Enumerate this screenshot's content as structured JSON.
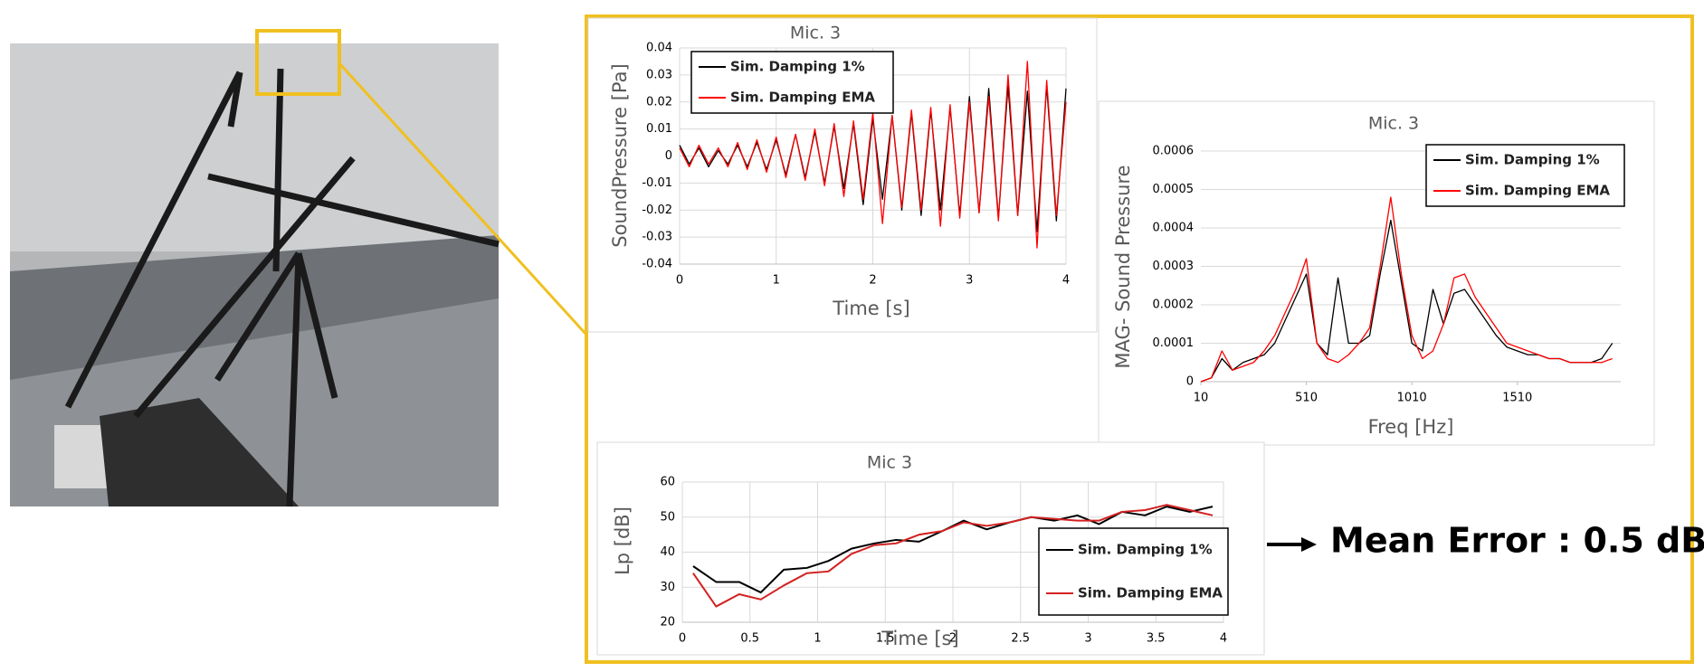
{
  "chart_data": [
    {
      "type": "line",
      "title": "Mic. 3",
      "x_label": "Time [s]",
      "y_label": "SoundPressure [Pa]",
      "x": [
        0,
        0.1,
        0.2,
        0.3,
        0.4,
        0.5,
        0.6,
        0.7,
        0.8,
        0.9,
        1,
        1.1,
        1.2,
        1.3,
        1.4,
        1.5,
        1.6,
        1.7,
        1.8,
        1.9,
        2,
        2.1,
        2.2,
        2.3,
        2.4,
        2.5,
        2.6,
        2.7,
        2.8,
        2.9,
        3,
        3.1,
        3.2,
        3.3,
        3.4,
        3.5,
        3.6,
        3.7,
        3.8,
        3.9,
        4
      ],
      "series": [
        {
          "name": "Sim. Damping 1%",
          "color": "#000000",
          "values": [
            0.004,
            -0.003,
            0.003,
            -0.004,
            0.002,
            -0.003,
            0.004,
            -0.004,
            0.005,
            -0.005,
            0.006,
            -0.007,
            0.008,
            -0.008,
            0.009,
            -0.01,
            0.011,
            -0.012,
            0.012,
            -0.018,
            0.014,
            -0.016,
            0.015,
            -0.02,
            0.016,
            -0.022,
            0.017,
            -0.02,
            0.018,
            -0.022,
            0.022,
            -0.021,
            0.025,
            -0.023,
            0.026,
            -0.022,
            0.024,
            -0.028,
            0.026,
            -0.024,
            0.025
          ]
        },
        {
          "name": "Sim. Damping EMA",
          "color": "#ff0000",
          "values": [
            0.003,
            -0.004,
            0.004,
            -0.003,
            0.003,
            -0.004,
            0.005,
            -0.005,
            0.006,
            -0.006,
            0.007,
            -0.008,
            0.008,
            -0.009,
            0.01,
            -0.011,
            0.012,
            -0.015,
            0.013,
            -0.016,
            0.016,
            -0.025,
            0.015,
            -0.019,
            0.017,
            -0.02,
            0.018,
            -0.026,
            0.019,
            -0.023,
            0.02,
            -0.021,
            0.022,
            -0.024,
            0.03,
            -0.022,
            0.035,
            -0.034,
            0.028,
            -0.022,
            0.02
          ]
        }
      ],
      "xlim": [
        0,
        4
      ],
      "xticks": [
        0,
        1,
        2,
        3,
        4
      ],
      "ylim": [
        -0.04,
        0.04
      ],
      "yticks": [
        -0.04,
        -0.03,
        -0.02,
        -0.01,
        0,
        0.01,
        0.02,
        0.03,
        0.04
      ],
      "grid": true,
      "legend": "upper left"
    },
    {
      "type": "line",
      "title": "Mic. 3",
      "x_label": "Freq [Hz]",
      "y_label": "MAG- Sound Pressure",
      "x": [
        10,
        60,
        110,
        160,
        210,
        260,
        310,
        360,
        410,
        460,
        510,
        560,
        610,
        660,
        710,
        760,
        810,
        860,
        910,
        960,
        1010,
        1060,
        1110,
        1160,
        1210,
        1260,
        1310,
        1360,
        1410,
        1460,
        1510,
        1560,
        1610,
        1660,
        1710,
        1760,
        1810,
        1860,
        1910,
        1960
      ],
      "series": [
        {
          "name": "Sim. Damping 1%",
          "color": "#000000",
          "values": [
            0,
            1e-05,
            6e-05,
            3e-05,
            5e-05,
            6e-05,
            7e-05,
            0.0001,
            0.00016,
            0.00022,
            0.00028,
            0.0001,
            7e-05,
            0.00027,
            0.0001,
            0.0001,
            0.00012,
            0.00028,
            0.00042,
            0.00026,
            0.0001,
            8e-05,
            0.00024,
            0.00015,
            0.00023,
            0.00024,
            0.0002,
            0.00016,
            0.00012,
            9e-05,
            8e-05,
            7e-05,
            7e-05,
            6e-05,
            6e-05,
            5e-05,
            5e-05,
            5e-05,
            6e-05,
            0.0001
          ]
        },
        {
          "name": "Sim. Damping EMA",
          "color": "#ff0000",
          "values": [
            0,
            1e-05,
            8e-05,
            3e-05,
            4e-05,
            5e-05,
            8e-05,
            0.00012,
            0.00018,
            0.00024,
            0.00032,
            0.0001,
            6e-05,
            5e-05,
            7e-05,
            0.0001,
            0.00014,
            0.0003,
            0.00048,
            0.00028,
            0.00012,
            6e-05,
            8e-05,
            0.00015,
            0.00027,
            0.00028,
            0.00022,
            0.00018,
            0.00014,
            0.0001,
            9e-05,
            8e-05,
            7e-05,
            6e-05,
            6e-05,
            5e-05,
            5e-05,
            5e-05,
            5e-05,
            6e-05
          ]
        }
      ],
      "xlim": [
        10,
        2000
      ],
      "xticks": [
        10,
        510,
        1010,
        1510
      ],
      "ylim": [
        0,
        0.0006
      ],
      "yticks": [
        0,
        0.0001,
        0.0002,
        0.0003,
        0.0004,
        0.0005,
        0.0006
      ],
      "grid": true,
      "legend": "upper right"
    },
    {
      "type": "line",
      "title": "Mic 3",
      "x_label": "Time [s]",
      "y_label": "Lp [dB]",
      "x": [
        0.08,
        0.25,
        0.42,
        0.58,
        0.75,
        0.92,
        1.08,
        1.25,
        1.42,
        1.58,
        1.75,
        1.92,
        2.08,
        2.25,
        2.42,
        2.58,
        2.75,
        2.92,
        3.08,
        3.25,
        3.42,
        3.58,
        3.75,
        3.92
      ],
      "series": [
        {
          "name": "Sim. Damping 1%",
          "color": "#000000",
          "values": [
            36,
            31.5,
            31.5,
            28.5,
            35,
            35.5,
            37.5,
            41,
            42.5,
            43.5,
            43,
            46,
            49,
            46.5,
            48.5,
            50,
            49,
            50.5,
            48,
            51.5,
            50.5,
            53,
            51.5,
            53
          ]
        },
        {
          "name": "Sim. Damping EMA",
          "color": "#d42020",
          "values": [
            34,
            24.5,
            28,
            26.5,
            30.5,
            34,
            34.5,
            39.5,
            42,
            42.5,
            45,
            46,
            48.5,
            47.5,
            48.5,
            50,
            49.5,
            49,
            49,
            51.5,
            52,
            53.5,
            52,
            50.5
          ]
        }
      ],
      "xlim": [
        0,
        4
      ],
      "xticks": [
        0,
        0.5,
        1,
        1.5,
        2,
        2.5,
        3,
        3.5,
        4
      ],
      "ylim": [
        20,
        60
      ],
      "yticks": [
        20,
        30,
        40,
        50,
        60
      ],
      "grid": true,
      "legend": "lower right",
      "annotation": "Mean Error : 0.5 dB"
    }
  ]
}
